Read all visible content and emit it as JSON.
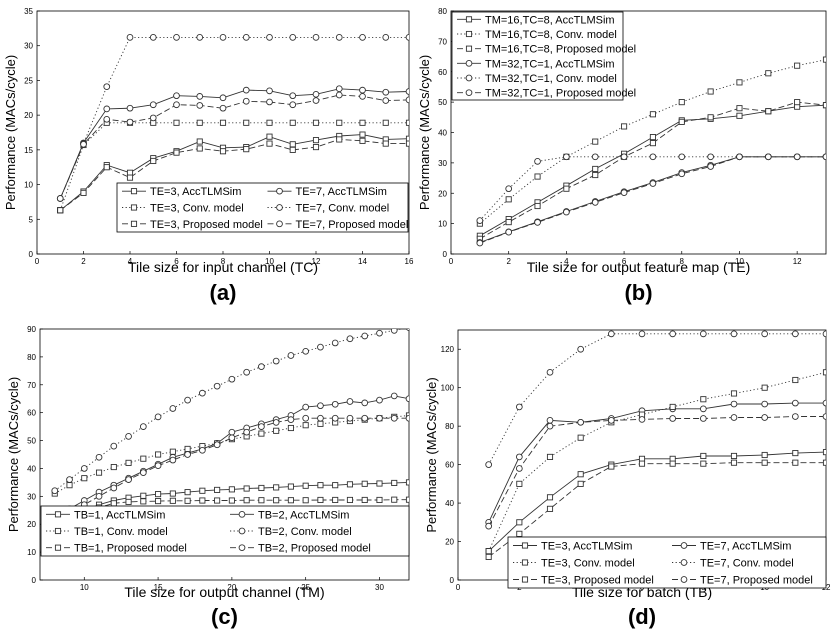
{
  "chart_data": [
    {
      "type": "line",
      "panel_label": "(a)",
      "xlabel": "Tile size for input channel (TC)",
      "ylabel": "Performance (MACs/cycle)",
      "xlim": [
        0,
        16
      ],
      "ylim": [
        0,
        35
      ],
      "xticks": [
        0,
        2,
        4,
        6,
        8,
        10,
        12,
        14,
        16
      ],
      "yticks": [
        0,
        5,
        10,
        15,
        20,
        25,
        30,
        35
      ],
      "legend_position": "bottom-right",
      "legend_columns": 2,
      "x": [
        1,
        2,
        3,
        4,
        5,
        6,
        7,
        8,
        9,
        10,
        11,
        12,
        13,
        14,
        15,
        16
      ],
      "series": [
        {
          "name": "TE=3, AccTLMSim",
          "style": "solid",
          "marker": "square",
          "values": [
            6.3,
            9,
            12.8,
            11.7,
            13.8,
            14.8,
            16.2,
            15.3,
            15.4,
            16.9,
            15.8,
            16.4,
            17,
            17.2,
            16.5,
            16.6
          ]
        },
        {
          "name": "TE=7, AccTLMSim",
          "style": "solid",
          "marker": "circle",
          "values": [
            8,
            16,
            20.9,
            21,
            21.5,
            22.8,
            22.7,
            22.5,
            23.6,
            23.5,
            22.8,
            23,
            23.8,
            23.6,
            23.3,
            23.4
          ]
        },
        {
          "name": "TE=3, Conv. model",
          "style": "dotted",
          "marker": "square",
          "values": [
            6.3,
            15.7,
            18.9,
            18.9,
            18.9,
            18.9,
            18.9,
            18.9,
            18.9,
            18.9,
            18.9,
            18.9,
            18.9,
            18.9,
            18.9,
            18.9
          ]
        },
        {
          "name": "TE=7, Conv. model",
          "style": "dotted",
          "marker": "circle",
          "values": [
            8,
            15.9,
            24.1,
            31.2,
            31.2,
            31.2,
            31.2,
            31.2,
            31.2,
            31.2,
            31.2,
            31.2,
            31.2,
            31.2,
            31.2,
            31.2
          ]
        },
        {
          "name": "TE=3, Proposed model",
          "style": "dashed",
          "marker": "square",
          "values": [
            6.3,
            8.8,
            12.5,
            11,
            13.4,
            14.6,
            15.2,
            14.8,
            15.1,
            15.9,
            15,
            15.4,
            16.5,
            16.3,
            15.9,
            15.9
          ]
        },
        {
          "name": "TE=7, Proposed model",
          "style": "dashed",
          "marker": "circle",
          "values": [
            8,
            15.8,
            19.4,
            19,
            19.6,
            21.5,
            21.4,
            21,
            22,
            21.9,
            21.5,
            22.1,
            22.9,
            22.7,
            22.1,
            22.2
          ]
        }
      ]
    },
    {
      "type": "line",
      "panel_label": "(b)",
      "xlabel": "Tile size for output feature map (TE)",
      "ylabel": "Performance (MACs/cycle)",
      "xlim": [
        0,
        13
      ],
      "ylim": [
        0,
        80
      ],
      "xticks": [
        0,
        2,
        4,
        6,
        8,
        10,
        12
      ],
      "yticks": [
        0,
        10,
        20,
        30,
        40,
        50,
        60,
        70,
        80
      ],
      "legend_position": "top-left",
      "legend_columns": 1,
      "x": [
        1,
        2,
        3,
        4,
        5,
        6,
        7,
        8,
        9,
        10,
        11,
        12,
        13
      ],
      "series": [
        {
          "name": "TM=16,TC=8, AccTLMSim",
          "style": "solid",
          "marker": "square",
          "values": [
            6,
            11.5,
            17,
            22.5,
            28,
            33,
            38.5,
            44,
            44.5,
            45.5,
            47,
            48.5,
            49
          ]
        },
        {
          "name": "TM=16,TC=8, Conv. model",
          "style": "dotted",
          "marker": "square",
          "values": [
            10,
            18,
            25.5,
            32,
            37,
            42,
            46,
            50,
            53.5,
            56.5,
            59.5,
            62,
            64
          ]
        },
        {
          "name": "TM=16,TC=8, Proposed model",
          "style": "dashed",
          "marker": "square",
          "values": [
            5,
            10.5,
            15.8,
            21.5,
            26,
            32,
            36.5,
            43.5,
            45,
            48,
            47,
            50,
            49
          ]
        },
        {
          "name": "TM=32,TC=1, AccTLMSim",
          "style": "solid",
          "marker": "circle",
          "values": [
            3.8,
            7.3,
            10.6,
            14,
            17.3,
            20.5,
            23.5,
            26.8,
            29.2,
            32,
            32,
            32,
            32
          ]
        },
        {
          "name": "TM=32,TC=1, Conv. model",
          "style": "dotted",
          "marker": "circle",
          "values": [
            11,
            21.5,
            30.5,
            32,
            32,
            32,
            32,
            32,
            32,
            32,
            32,
            32,
            32
          ]
        },
        {
          "name": "TM=32,TC=1, Proposed model",
          "style": "dashed",
          "marker": "circle",
          "values": [
            3.6,
            7.2,
            10.4,
            13.8,
            17,
            20.2,
            23.2,
            26.4,
            28.8,
            32,
            32,
            32,
            32
          ]
        }
      ]
    },
    {
      "type": "line",
      "panel_label": "(c)",
      "xlabel": "Tile size for output channel (TM)",
      "ylabel": "Performance (MACs/cycle)",
      "xlim": [
        7,
        32
      ],
      "ylim": [
        0,
        90
      ],
      "xticks": [
        10,
        15,
        20,
        25,
        30
      ],
      "yticks": [
        0,
        10,
        20,
        30,
        40,
        50,
        60,
        70,
        80,
        90
      ],
      "legend_position": "bottom-right",
      "legend_columns": 2,
      "x": [
        8,
        9,
        10,
        11,
        12,
        13,
        14,
        15,
        16,
        17,
        18,
        19,
        20,
        21,
        22,
        23,
        24,
        25,
        26,
        27,
        28,
        29,
        30,
        31,
        32
      ],
      "series": [
        {
          "name": "TB=1, AccTLMSim",
          "style": "solid",
          "marker": "square",
          "values": [
            20,
            23,
            25,
            27,
            28.5,
            29.5,
            30.2,
            30.8,
            31,
            31.5,
            32,
            32.3,
            32.5,
            32.8,
            33,
            33.2,
            33.5,
            33.8,
            34,
            34,
            34.3,
            34.5,
            34.6,
            34.8,
            35
          ]
        },
        {
          "name": "TB=2, AccTLMSim",
          "style": "solid",
          "marker": "circle",
          "values": [
            23,
            25.5,
            28.5,
            31.5,
            34,
            36.5,
            39,
            41.5,
            44,
            45.5,
            47,
            49,
            53,
            54.5,
            56,
            57.5,
            59,
            62,
            62.5,
            63,
            64,
            63.5,
            64.5,
            66,
            65
          ]
        },
        {
          "name": "TB=1, Conv. model",
          "style": "dotted",
          "marker": "square",
          "values": [
            31,
            34,
            36.5,
            38.5,
            40.5,
            42,
            43.5,
            45,
            46,
            47,
            48,
            49,
            50.5,
            51.5,
            52.5,
            53.5,
            54.5,
            55.5,
            56,
            56.5,
            57,
            57.5,
            58,
            58.5,
            59
          ]
        },
        {
          "name": "TB=2, Conv. model",
          "style": "dotted",
          "marker": "circle",
          "values": [
            32,
            36,
            40,
            44,
            48,
            51.5,
            55,
            58.5,
            61.5,
            64.5,
            67,
            69.5,
            72,
            74.5,
            76.5,
            78.5,
            80.5,
            82,
            83.5,
            85,
            86.5,
            87.5,
            88.5,
            89.5,
            90.5
          ]
        },
        {
          "name": "TB=1, Proposed model",
          "style": "dashed",
          "marker": "square",
          "values": [
            19.5,
            22,
            24,
            26,
            27.5,
            28,
            28.2,
            28.3,
            28.4,
            28.4,
            28.5,
            28.5,
            28.5,
            28.6,
            28.6,
            28.6,
            28.6,
            28.6,
            28.7,
            28.7,
            28.7,
            28.7,
            28.7,
            28.8,
            28.8
          ]
        },
        {
          "name": "TB=2, Proposed model",
          "style": "dashed",
          "marker": "circle",
          "values": [
            21,
            24,
            27,
            30,
            33,
            36,
            38.5,
            41,
            43,
            45,
            46.5,
            48.5,
            51,
            53,
            55,
            56.5,
            57.5,
            58,
            58,
            58,
            58,
            58,
            58,
            58,
            58
          ]
        }
      ]
    },
    {
      "type": "line",
      "panel_label": "(d)",
      "xlabel": "Tile size for batch (TB)",
      "ylabel": "Performance (MACs/cycle)",
      "xlim": [
        0,
        12
      ],
      "ylim": [
        0,
        130
      ],
      "xticks": [
        0,
        2,
        4,
        6,
        8,
        10,
        12
      ],
      "yticks": [
        0,
        20,
        40,
        60,
        80,
        100,
        120
      ],
      "legend_position": "bottom-right",
      "legend_columns": 2,
      "x": [
        1,
        2,
        3,
        4,
        5,
        6,
        7,
        8,
        9,
        10,
        11,
        12
      ],
      "series": [
        {
          "name": "TE=3, AccTLMSim",
          "style": "solid",
          "marker": "square",
          "values": [
            15,
            30,
            43,
            55,
            60,
            63,
            63,
            64.5,
            64.5,
            65,
            66,
            66.5
          ]
        },
        {
          "name": "TE=7, AccTLMSim",
          "style": "solid",
          "marker": "circle",
          "values": [
            30,
            64,
            83,
            82,
            84,
            88,
            89,
            89,
            91.5,
            91.5,
            92,
            92
          ]
        },
        {
          "name": "TE=3, Conv. model",
          "style": "dotted",
          "marker": "square",
          "values": [
            15,
            50,
            64,
            74,
            82,
            86,
            90,
            94,
            97,
            100,
            104,
            108
          ]
        },
        {
          "name": "TE=7, Conv. model",
          "style": "dotted",
          "marker": "circle",
          "values": [
            60,
            90,
            108,
            120,
            128,
            128,
            128,
            128,
            128,
            128,
            128,
            128
          ]
        },
        {
          "name": "TE=3, Proposed model",
          "style": "dashed",
          "marker": "square",
          "values": [
            12,
            24,
            37,
            50,
            59,
            60.5,
            60.5,
            60.5,
            61,
            61,
            61,
            61
          ]
        },
        {
          "name": "TE=7, Proposed model",
          "style": "dashed",
          "marker": "circle",
          "values": [
            28,
            58,
            80,
            82,
            83,
            83.5,
            84,
            84,
            84.5,
            84.5,
            85,
            85
          ]
        }
      ]
    }
  ]
}
